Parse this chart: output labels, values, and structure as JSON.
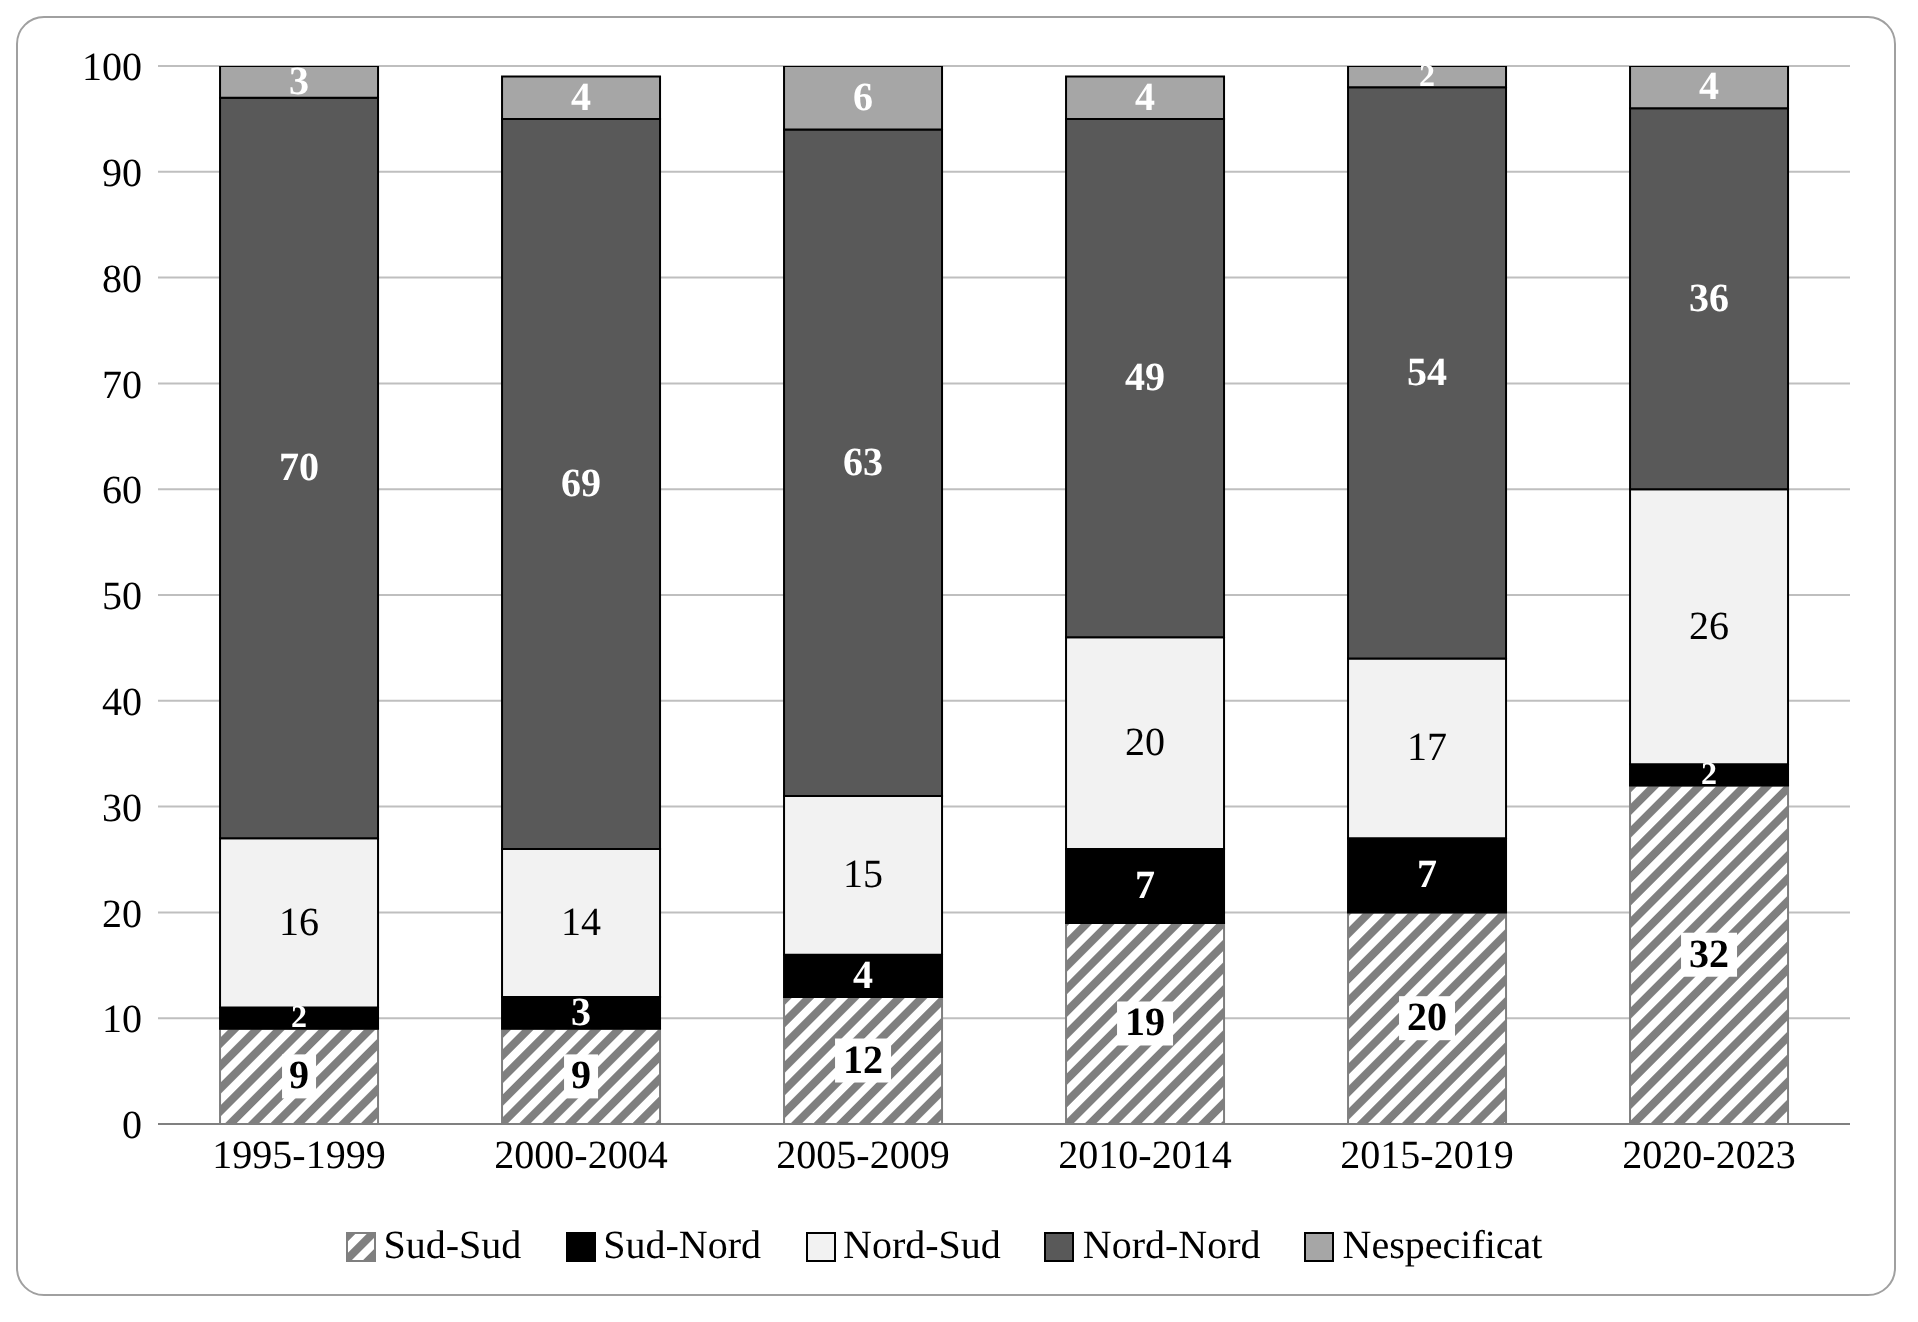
{
  "chart_data": {
    "type": "bar",
    "stacked": true,
    "categories": [
      "1995-1999",
      "2000-2004",
      "2005-2009",
      "2010-2014",
      "2015-2019",
      "2020-2023"
    ],
    "series": [
      {
        "name": "Sud-Sud",
        "color": "#7f7f7f",
        "values": [
          9,
          9,
          12,
          19,
          20,
          32
        ]
      },
      {
        "name": "Sud-Nord",
        "color": "#000000",
        "values": [
          2,
          3,
          4,
          7,
          7,
          2
        ]
      },
      {
        "name": "Nord-Sud",
        "color": "#f2f2f2",
        "values": [
          16,
          14,
          15,
          20,
          17,
          26
        ]
      },
      {
        "name": "Nord-Nord",
        "color": "#595959",
        "values": [
          70,
          69,
          63,
          49,
          54,
          36
        ]
      },
      {
        "name": "Nespecificat",
        "color": "#a6a6a6",
        "values": [
          3,
          4,
          6,
          4,
          2,
          4
        ]
      }
    ],
    "ylim": [
      0,
      100
    ],
    "yticks": [
      0,
      10,
      20,
      30,
      40,
      50,
      60,
      70,
      80,
      90,
      100
    ],
    "grid": "y",
    "legend": "bottom",
    "data_labels": true
  }
}
